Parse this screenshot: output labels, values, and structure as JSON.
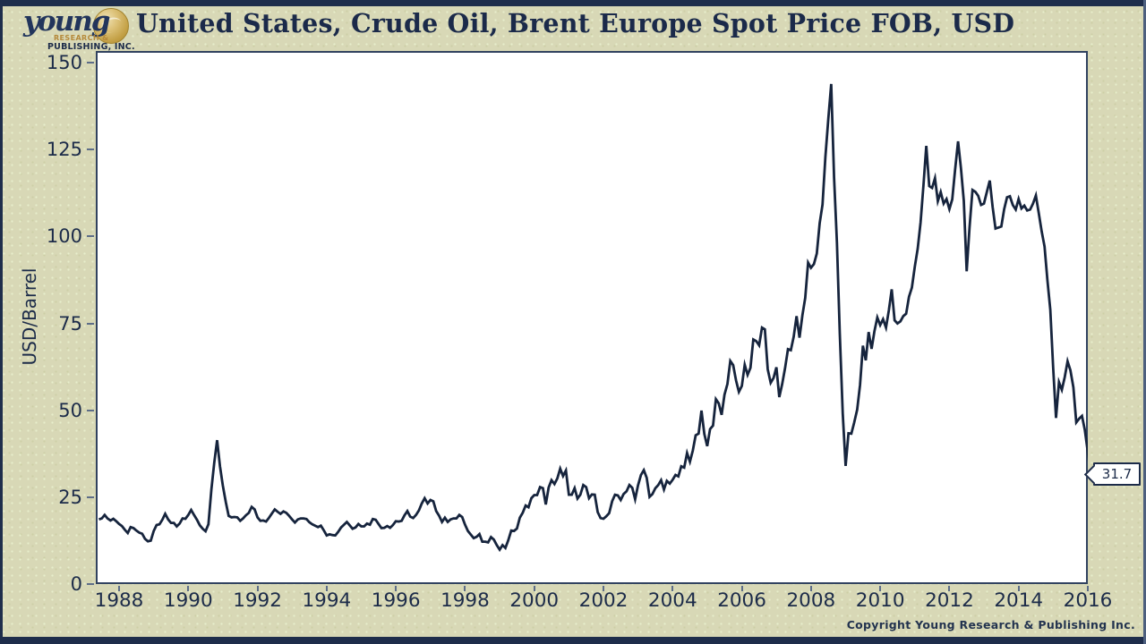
{
  "header": {
    "title": "United States, Crude Oil, Brent Europe Spot Price FOB, USD",
    "logo": {
      "script_text": "young",
      "line1": "RESEARCH &",
      "line2": "PUBLISHING, INC."
    }
  },
  "footer": {
    "copyright": "Copyright Young Research & Publishing Inc."
  },
  "colors": {
    "background": "#d8d8b6",
    "frame_border": "#1e2d4b",
    "plot_background": "#ffffff",
    "plot_border": "#31425f",
    "line": "#16243d",
    "text": "#1c2b49",
    "logo_gold": "#c9a84c"
  },
  "chart_data": {
    "type": "line",
    "title": "United States, Crude Oil, Brent Europe Spot Price FOB, USD",
    "xlabel": "",
    "ylabel": "USD/Barrel",
    "ylim": [
      0,
      150
    ],
    "y_top_value": 153.4,
    "xlim": [
      1987.327,
      2016.0
    ],
    "y_ticks": [
      0,
      25,
      50,
      75,
      100,
      125,
      150
    ],
    "x_ticks": [
      1988,
      1990,
      1992,
      1994,
      1996,
      1998,
      2000,
      2002,
      2004,
      2006,
      2008,
      2010,
      2012,
      2014,
      2016
    ],
    "grid": false,
    "legend": "none",
    "last_value_label": "31.7",
    "series": [
      {
        "name": "Brent Europe Spot Price FOB (USD/Barrel)",
        "x_start": 1987.417,
        "x_step_years": 0.08333,
        "values": [
          18.6,
          18.9,
          19.9,
          18.9,
          18.3,
          18.8,
          18.1,
          17.3,
          16.7,
          15.6,
          14.7,
          16.4,
          16.1,
          15.4,
          14.8,
          14.5,
          13.0,
          12.3,
          12.5,
          15.3,
          17.0,
          17.2,
          18.5,
          20.2,
          18.6,
          17.6,
          17.6,
          16.6,
          17.4,
          18.9,
          18.8,
          19.9,
          21.3,
          19.9,
          18.5,
          16.9,
          15.9,
          15.2,
          17.2,
          27.2,
          34.9,
          41.4,
          33.9,
          28.3,
          23.6,
          19.6,
          19.2,
          19.3,
          19.2,
          18.2,
          18.9,
          19.8,
          20.5,
          22.2,
          21.5,
          19.2,
          18.2,
          18.3,
          18.0,
          19.1,
          20.3,
          21.5,
          20.8,
          20.2,
          20.9,
          20.5,
          19.6,
          18.6,
          17.7,
          18.6,
          18.9,
          18.9,
          18.7,
          17.8,
          17.2,
          16.8,
          16.4,
          16.8,
          15.5,
          14.0,
          14.3,
          14.1,
          14.0,
          15.0,
          16.3,
          17.1,
          17.9,
          16.9,
          15.9,
          16.3,
          17.3,
          16.6,
          16.6,
          17.4,
          17.1,
          18.7,
          18.5,
          17.3,
          16.1,
          16.2,
          16.7,
          16.2,
          17.0,
          18.1,
          18.0,
          18.2,
          19.8,
          21.0,
          19.4,
          19.0,
          19.9,
          21.2,
          23.2,
          24.7,
          23.2,
          24.2,
          23.8,
          21.0,
          19.7,
          17.9,
          19.1,
          17.9,
          18.6,
          18.9,
          18.9,
          19.9,
          19.3,
          17.1,
          15.3,
          14.2,
          13.2,
          13.6,
          14.4,
          12.2,
          12.2,
          12.0,
          13.5,
          12.8,
          11.2,
          9.9,
          11.2,
          10.4,
          12.6,
          15.4,
          15.3,
          16.0,
          19.1,
          20.5,
          22.6,
          22.1,
          24.7,
          25.6,
          25.6,
          27.9,
          27.6,
          22.9,
          27.8,
          29.9,
          28.8,
          30.4,
          33.2,
          31.1,
          32.7,
          25.7,
          25.7,
          27.6,
          24.6,
          25.7,
          28.5,
          27.9,
          24.7,
          25.8,
          25.7,
          20.7,
          19.0,
          18.8,
          19.5,
          20.4,
          23.8,
          25.7,
          25.5,
          24.2,
          25.9,
          26.7,
          28.5,
          27.7,
          24.4,
          28.4,
          31.4,
          32.8,
          30.6,
          25.1,
          25.9,
          27.6,
          28.5,
          29.9,
          27.2,
          29.7,
          28.9,
          30.0,
          31.4,
          31.0,
          33.9,
          33.5,
          37.7,
          35.2,
          38.4,
          42.8,
          43.3,
          49.9,
          43.2,
          39.7,
          44.6,
          45.6,
          53.2,
          52.0,
          48.7,
          54.5,
          57.6,
          64.2,
          63.0,
          58.6,
          55.3,
          57.0,
          63.1,
          60.2,
          62.2,
          70.4,
          69.9,
          68.7,
          73.8,
          73.3,
          61.8,
          57.9,
          59.3,
          62.4,
          53.8,
          57.5,
          62.2,
          67.6,
          67.3,
          71.2,
          77.1,
          70.9,
          77.3,
          82.4,
          92.5,
          91.0,
          92.1,
          95.1,
          103.8,
          109.2,
          122.9,
          134.0,
          143.9,
          117.0,
          98.2,
          72.0,
          49.0,
          34.0,
          43.4,
          43.3,
          46.5,
          50.2,
          57.3,
          68.6,
          64.4,
          72.5,
          67.7,
          72.8,
          76.7,
          74.5,
          76.2,
          73.8,
          78.8,
          84.8,
          75.9,
          75.0,
          75.6,
          77.1,
          77.8,
          82.7,
          85.3,
          91.4,
          96.5,
          104.0,
          114.6,
          126.1,
          114.5,
          114.0,
          116.8,
          110.2,
          112.8,
          109.5,
          110.8,
          107.9,
          110.7,
          119.3,
          127.4,
          119.7,
          110.3,
          90.0,
          102.6,
          113.4,
          112.9,
          111.7,
          109.1,
          109.5,
          112.9,
          116.1,
          108.5,
          102.3,
          102.6,
          102.9,
          107.9,
          111.3,
          111.6,
          109.1,
          107.8,
          110.8,
          108.1,
          108.9,
          107.5,
          107.8,
          109.5,
          111.8,
          106.8,
          101.6,
          97.1,
          87.4,
          79.0,
          62.3,
          47.8,
          58.1,
          55.9,
          59.5,
          64.1,
          61.5,
          56.6,
          46.5,
          47.6,
          48.4,
          44.3,
          38.0,
          31.7
        ]
      }
    ]
  }
}
